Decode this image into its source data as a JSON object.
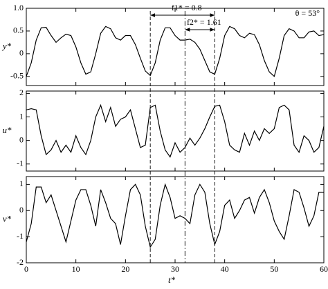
{
  "chart_data": [
    {
      "type": "line",
      "ylabel": "y*",
      "xlim": [
        0,
        60
      ],
      "ylim": [
        -0.7,
        1.0
      ],
      "yticks": [
        -0.5,
        0,
        0.5,
        {
          "value": 1,
          "label": "1.0"
        }
      ],
      "xticks": [
        0,
        10,
        20,
        30,
        40,
        50,
        60
      ],
      "show_xtick_labels": false,
      "x": [
        0,
        1,
        2,
        3,
        4,
        5,
        6,
        7,
        8,
        9,
        10,
        11,
        12,
        13,
        14,
        15,
        16,
        17,
        18,
        19,
        20,
        21,
        22,
        23,
        24,
        25,
        26,
        27,
        28,
        29,
        30,
        31,
        32,
        33,
        34,
        35,
        36,
        37,
        38,
        39,
        40,
        41,
        42,
        43,
        44,
        45,
        46,
        47,
        48,
        49,
        50,
        51,
        52,
        53,
        54,
        55,
        56,
        57,
        58,
        59,
        60
      ],
      "series": [
        {
          "color": "#000000",
          "values": [
            -0.5,
            -0.2,
            0.3,
            0.57,
            0.58,
            0.4,
            0.25,
            0.35,
            0.43,
            0.4,
            0.15,
            -0.2,
            -0.45,
            -0.4,
            0.0,
            0.45,
            0.6,
            0.55,
            0.35,
            0.3,
            0.4,
            0.4,
            0.2,
            -0.1,
            -0.38,
            -0.48,
            -0.2,
            0.3,
            0.57,
            0.57,
            0.4,
            0.3,
            0.3,
            0.32,
            0.25,
            0.1,
            -0.15,
            -0.4,
            -0.45,
            -0.1,
            0.4,
            0.6,
            0.55,
            0.4,
            0.35,
            0.45,
            0.42,
            0.2,
            -0.15,
            -0.4,
            -0.5,
            -0.1,
            0.4,
            0.55,
            0.5,
            0.35,
            0.35,
            0.48,
            0.5,
            0.4,
            0.42
          ]
        }
      ],
      "annotations": [
        {
          "text": "f1* = 0.8",
          "x": [
            25,
            38
          ]
        },
        {
          "text": "f2* = 1.61",
          "x": [
            32,
            38
          ]
        },
        {
          "text": "θ = 53°"
        }
      ],
      "vlines": [
        {
          "x": 25,
          "style": "dashed"
        },
        {
          "x": 32,
          "style": "dashdot"
        },
        {
          "x": 38,
          "style": "dashed"
        }
      ]
    },
    {
      "type": "line",
      "ylabel": "u*",
      "xlim": [
        0,
        60
      ],
      "ylim": [
        -1.3,
        2.1
      ],
      "yticks": [
        -1,
        0,
        1,
        2
      ],
      "xticks": [
        0,
        10,
        20,
        30,
        40,
        50,
        60
      ],
      "show_xtick_labels": false,
      "x": [
        0,
        1,
        2,
        3,
        4,
        5,
        6,
        7,
        8,
        9,
        10,
        11,
        12,
        13,
        14,
        15,
        16,
        17,
        18,
        19,
        20,
        21,
        22,
        23,
        24,
        25,
        26,
        27,
        28,
        29,
        30,
        31,
        32,
        33,
        34,
        35,
        36,
        37,
        38,
        39,
        40,
        41,
        42,
        43,
        44,
        45,
        46,
        47,
        48,
        49,
        50,
        51,
        52,
        53,
        54,
        55,
        56,
        57,
        58,
        59,
        60
      ],
      "series": [
        {
          "color": "#000000",
          "values": [
            1.3,
            1.35,
            1.3,
            0.2,
            -0.6,
            -0.4,
            0.0,
            -0.5,
            -0.2,
            -0.5,
            0.2,
            -0.3,
            -0.6,
            0.0,
            1.0,
            1.5,
            0.8,
            1.4,
            0.6,
            0.9,
            1.0,
            1.3,
            0.5,
            -0.3,
            -0.2,
            1.4,
            1.5,
            0.4,
            -0.4,
            -0.7,
            -0.1,
            -0.5,
            -0.3,
            0.1,
            -0.2,
            0.1,
            0.5,
            1.0,
            1.45,
            1.5,
            0.8,
            -0.2,
            -0.4,
            -0.5,
            0.3,
            -0.2,
            0.4,
            0.0,
            0.5,
            0.3,
            0.5,
            1.4,
            1.5,
            1.3,
            -0.2,
            -0.5,
            0.2,
            0.0,
            -0.5,
            -0.3,
            0.6
          ]
        }
      ]
    },
    {
      "type": "line",
      "ylabel": "v*",
      "xlabel": "t*",
      "xlim": [
        0,
        60
      ],
      "ylim": [
        -2,
        1.3
      ],
      "yticks": [
        -2,
        -1,
        0,
        1
      ],
      "xticks": [
        0,
        10,
        20,
        30,
        40,
        50,
        60
      ],
      "show_xtick_labels": true,
      "x": [
        0,
        1,
        2,
        3,
        4,
        5,
        6,
        7,
        8,
        9,
        10,
        11,
        12,
        13,
        14,
        15,
        16,
        17,
        18,
        19,
        20,
        21,
        22,
        23,
        24,
        25,
        26,
        27,
        28,
        29,
        30,
        31,
        32,
        33,
        34,
        35,
        36,
        37,
        38,
        39,
        40,
        41,
        42,
        43,
        44,
        45,
        46,
        47,
        48,
        49,
        50,
        51,
        52,
        53,
        54,
        55,
        56,
        57,
        58,
        59,
        60
      ],
      "series": [
        {
          "color": "#000000",
          "values": [
            -1.2,
            -0.5,
            0.9,
            0.9,
            0.3,
            0.6,
            0.0,
            -0.6,
            -1.2,
            -0.4,
            0.4,
            0.8,
            0.8,
            0.2,
            -0.6,
            0.8,
            0.3,
            -0.3,
            -0.5,
            -1.3,
            -0.2,
            0.8,
            1.0,
            0.6,
            -0.6,
            -1.4,
            -1.1,
            0.2,
            1.0,
            0.5,
            -0.3,
            -0.2,
            -0.3,
            -0.5,
            0.6,
            1.0,
            0.7,
            -0.5,
            -1.3,
            -0.8,
            0.2,
            0.4,
            -0.3,
            0.0,
            0.4,
            0.5,
            -0.1,
            0.5,
            0.8,
            0.3,
            -0.4,
            -0.8,
            -1.1,
            -0.2,
            0.8,
            0.7,
            0.1,
            -0.6,
            -0.2,
            0.7,
            0.7
          ]
        }
      ]
    }
  ]
}
